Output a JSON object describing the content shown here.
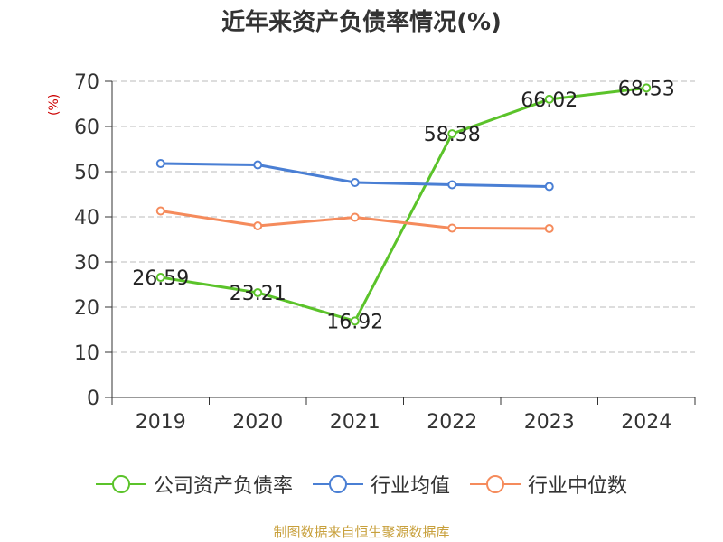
{
  "chart_data": {
    "type": "line",
    "title": "近年来资产负债率情况(%)",
    "ylabel": "(%)",
    "xlabel": "",
    "categories": [
      "2019",
      "2020",
      "2021",
      "2022",
      "2023",
      "2024"
    ],
    "ylim": [
      0,
      70
    ],
    "yticks": [
      0,
      10,
      20,
      30,
      40,
      50,
      60,
      70
    ],
    "grid": true,
    "legend_position": "bottom",
    "series": [
      {
        "name": "公司资产负债率",
        "color": "#5bc32a",
        "values": [
          26.59,
          23.21,
          16.92,
          58.38,
          66.02,
          68.53
        ],
        "labels": [
          "26.59",
          "23.21",
          "16.92",
          "58.38",
          "66.02",
          "68.53"
        ]
      },
      {
        "name": "行业均值",
        "color": "#4a7fd4",
        "values": [
          51.8,
          51.5,
          47.6,
          47.1,
          46.7,
          null
        ]
      },
      {
        "name": "行业中位数",
        "color": "#f58b5c",
        "values": [
          41.3,
          38.0,
          39.9,
          37.5,
          37.4,
          null
        ]
      }
    ]
  },
  "source": "制图数据来自恒生聚源数据库"
}
